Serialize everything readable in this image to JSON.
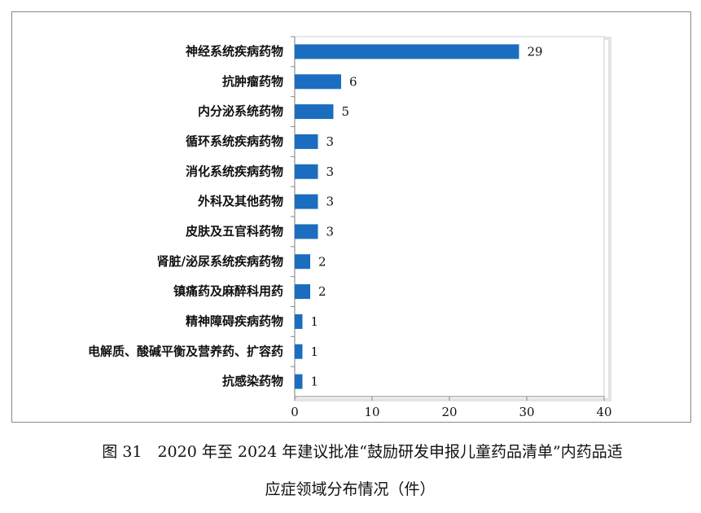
{
  "chart_data": {
    "type": "bar",
    "orientation": "horizontal",
    "categories": [
      "神经系统疾病药物",
      "抗肿瘤药物",
      "内分泌系统药物",
      "循环系统疾病药物",
      "消化系统疾病药物",
      "外科及其他药物",
      "皮肤及五官科药物",
      "肾脏/泌尿系统疾病药物",
      "镇痛药及麻醉科用药",
      "精神障碍疾病药物",
      "电解质、酸碱平衡及营养药、扩容药",
      "抗感染药物"
    ],
    "values": [
      29,
      6,
      5,
      3,
      3,
      3,
      3,
      2,
      2,
      1,
      1,
      1
    ],
    "color": "#1b6dbf",
    "xlim": [
      0,
      40
    ],
    "xticks": [
      0,
      10,
      20,
      30,
      40
    ],
    "grid": false
  },
  "caption_lines": [
    "图 31　2020 年至 2024 年建议批准“鼓励研发申报儿童药品清单”内药品适",
    "应症领域分布情况（件）"
  ]
}
